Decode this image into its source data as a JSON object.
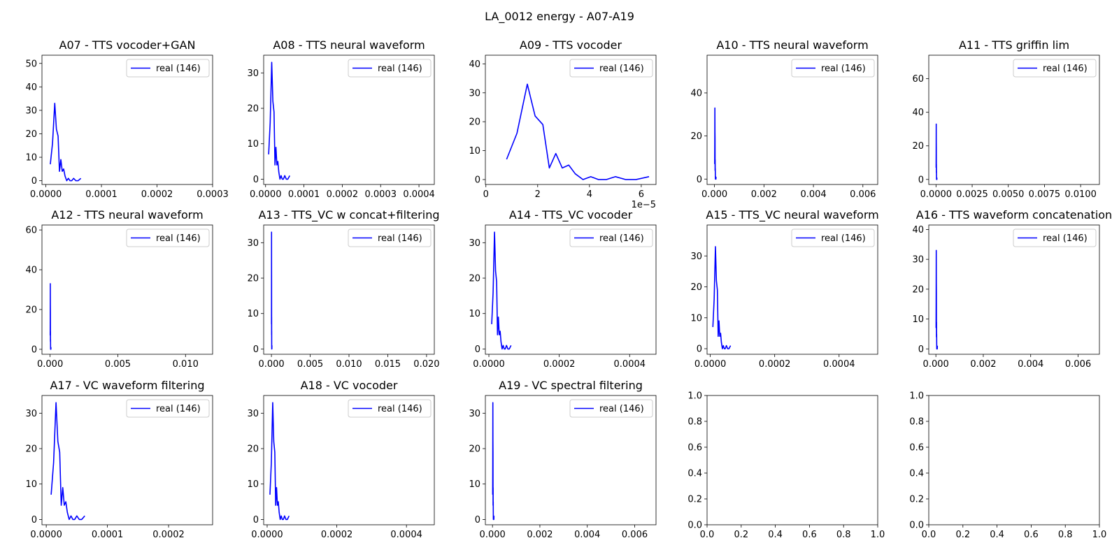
{
  "figure": {
    "title": "LA_0012 energy - A07-A19"
  },
  "colors": {
    "series": "#0000ff",
    "axes": "#000000",
    "legend_border": "#cccccc"
  },
  "base_series": {
    "name": "real (146)",
    "x": [
      8e-06,
      1.2e-05,
      1.6e-05,
      1.9e-05,
      2.2e-05,
      2.45e-05,
      2.7e-05,
      2.95e-05,
      3.2e-05,
      3.45e-05,
      3.75e-05,
      4.05e-05,
      4.35e-05,
      4.65e-05,
      5e-05,
      5.4e-05,
      5.8e-05,
      6.3e-05
    ],
    "y": [
      7,
      16,
      33,
      22,
      19,
      4,
      9,
      4,
      5,
      2,
      0,
      1,
      0,
      0,
      1,
      0,
      0,
      1
    ]
  },
  "chart_data": [
    {
      "type": "line",
      "title": "A07 - TTS vocoder+GAN",
      "xlim": [
        -7e-06,
        0.0003
      ],
      "ylim": [
        -1.6,
        53.5
      ],
      "xticks": [
        0,
        0.0001,
        0.0002,
        0.0003
      ],
      "xtick_labels": [
        "0.0000",
        "0.0001",
        "0.0002",
        "0.0003"
      ],
      "yticks": [
        0,
        10,
        20,
        30,
        40,
        50
      ],
      "ytick_labels": [
        "0",
        "10",
        "20",
        "30",
        "40",
        "50"
      ],
      "offset_label": "",
      "series": [
        {
          "name": "real (146)",
          "color": "#0000ff"
        }
      ],
      "legend": "upper right"
    },
    {
      "type": "line",
      "title": "A08 - TTS neural waveform",
      "xlim": [
        -5e-06,
        0.00044
      ],
      "ylim": [
        -1.5,
        35
      ],
      "xticks": [
        0,
        0.0001,
        0.0002,
        0.0003,
        0.0004
      ],
      "xtick_labels": [
        "0.0000",
        "0.0001",
        "0.0002",
        "0.0003",
        "0.0004"
      ],
      "yticks": [
        0,
        10,
        20,
        30
      ],
      "ytick_labels": [
        "0",
        "10",
        "20",
        "30"
      ],
      "offset_label": "",
      "series": [
        {
          "name": "real (146)",
          "color": "#0000ff"
        }
      ],
      "legend": "upper right"
    },
    {
      "type": "line",
      "title": "A09 - TTS vocoder",
      "xlim": [
        -2e-07,
        6.57e-05
      ],
      "ylim": [
        -1.7,
        43
      ],
      "xticks": [
        0,
        2e-05,
        4e-05,
        6e-05
      ],
      "xtick_labels": [
        "0",
        "2",
        "4",
        "6"
      ],
      "yticks": [
        0,
        10,
        20,
        30,
        40
      ],
      "ytick_labels": [
        "0",
        "10",
        "20",
        "30",
        "40"
      ],
      "offset_label": "1e−5",
      "series": [
        {
          "name": "real (146)",
          "color": "#0000ff"
        }
      ],
      "legend": "upper right"
    },
    {
      "type": "line",
      "title": "A10 - TTS neural waveform",
      "xlim": [
        -0.0003,
        0.0066
      ],
      "ylim": [
        -2.5,
        57.5
      ],
      "xticks": [
        0,
        0.002,
        0.004,
        0.006
      ],
      "xtick_labels": [
        "0.000",
        "0.002",
        "0.004",
        "0.006"
      ],
      "yticks": [
        0,
        20,
        40
      ],
      "ytick_labels": [
        "0",
        "20",
        "40"
      ],
      "offset_label": "",
      "series": [
        {
          "name": "real (146)",
          "color": "#0000ff"
        }
      ],
      "legend": "upper right"
    },
    {
      "type": "line",
      "title": "A11 - TTS griffin lim",
      "xlim": [
        -0.0005,
        0.0113
      ],
      "ylim": [
        -3.0,
        74
      ],
      "xticks": [
        0,
        0.0025,
        0.005,
        0.0075,
        0.01
      ],
      "xtick_labels": [
        "0.0000",
        "0.0025",
        "0.0050",
        "0.0075",
        "0.0100"
      ],
      "yticks": [
        0,
        20,
        40,
        60
      ],
      "ytick_labels": [
        "0",
        "20",
        "40",
        "60"
      ],
      "offset_label": "",
      "series": [
        {
          "name": "real (146)",
          "color": "#0000ff"
        }
      ],
      "legend": "upper right"
    },
    {
      "type": "line",
      "title": "A12 - TTS neural waveform",
      "xlim": [
        -0.0006,
        0.012
      ],
      "ylim": [
        -2.5,
        62.5
      ],
      "xticks": [
        0,
        0.005,
        0.01
      ],
      "xtick_labels": [
        "0.000",
        "0.005",
        "0.010"
      ],
      "yticks": [
        0,
        20,
        40,
        60
      ],
      "ytick_labels": [
        "0",
        "20",
        "40",
        "60"
      ],
      "offset_label": "",
      "series": [
        {
          "name": "real (146)",
          "color": "#0000ff"
        }
      ],
      "legend": "upper right"
    },
    {
      "type": "line",
      "title": "A13 - TTS_VC w concat+filtering",
      "xlim": [
        -0.001,
        0.021
      ],
      "ylim": [
        -1.5,
        35
      ],
      "xticks": [
        0,
        0.005,
        0.01,
        0.015,
        0.02
      ],
      "xtick_labels": [
        "0.000",
        "0.005",
        "0.010",
        "0.015",
        "0.020"
      ],
      "yticks": [
        0,
        10,
        20,
        30
      ],
      "ytick_labels": [
        "0",
        "10",
        "20",
        "30"
      ],
      "offset_label": "",
      "series": [
        {
          "name": "real (146)",
          "color": "#0000ff"
        }
      ],
      "legend": "upper right"
    },
    {
      "type": "line",
      "title": "A14 - TTS_VC vocoder",
      "xlim": [
        -1e-05,
        0.000475
      ],
      "ylim": [
        -1.5,
        35
      ],
      "xticks": [
        0,
        0.0002,
        0.0004
      ],
      "xtick_labels": [
        "0.0000",
        "0.0002",
        "0.0004"
      ],
      "yticks": [
        0,
        10,
        20,
        30
      ],
      "ytick_labels": [
        "0",
        "10",
        "20",
        "30"
      ],
      "offset_label": "",
      "series": [
        {
          "name": "real (146)",
          "color": "#0000ff"
        }
      ],
      "legend": "upper right"
    },
    {
      "type": "line",
      "title": "A15 - TTS_VC neural waveform",
      "xlim": [
        -1e-05,
        0.00052
      ],
      "ylim": [
        -1.8,
        40
      ],
      "xticks": [
        0,
        0.0002,
        0.0004
      ],
      "xtick_labels": [
        "0.0000",
        "0.0002",
        "0.0004"
      ],
      "yticks": [
        0,
        10,
        20,
        30
      ],
      "ytick_labels": [
        "0",
        "10",
        "20",
        "30"
      ],
      "offset_label": "",
      "series": [
        {
          "name": "real (146)",
          "color": "#0000ff"
        }
      ],
      "legend": "upper right"
    },
    {
      "type": "line",
      "title": "A16 - TTS waveform concatenation",
      "xlim": [
        -0.0003,
        0.0069
      ],
      "ylim": [
        -1.8,
        41.5
      ],
      "xticks": [
        0,
        0.002,
        0.004,
        0.006
      ],
      "xtick_labels": [
        "0.000",
        "0.002",
        "0.004",
        "0.006"
      ],
      "yticks": [
        0,
        10,
        20,
        30,
        40
      ],
      "ytick_labels": [
        "0",
        "10",
        "20",
        "30",
        "40"
      ],
      "offset_label": "",
      "series": [
        {
          "name": "real (146)",
          "color": "#0000ff"
        }
      ],
      "legend": "upper right"
    },
    {
      "type": "line",
      "title": "A17 - VC waveform filtering",
      "xlim": [
        -7e-06,
        0.000272
      ],
      "ylim": [
        -1.5,
        35
      ],
      "xticks": [
        0,
        0.0001,
        0.0002
      ],
      "xtick_labels": [
        "0.0000",
        "0.0001",
        "0.0002"
      ],
      "yticks": [
        0,
        10,
        20,
        30
      ],
      "ytick_labels": [
        "0",
        "10",
        "20",
        "30"
      ],
      "offset_label": "",
      "series": [
        {
          "name": "real (146)",
          "color": "#0000ff"
        }
      ],
      "legend": "upper right"
    },
    {
      "type": "line",
      "title": "A18 - VC vocoder",
      "xlim": [
        -1e-05,
        0.00048
      ],
      "ylim": [
        -1.5,
        35
      ],
      "xticks": [
        0,
        0.0002,
        0.0004
      ],
      "xtick_labels": [
        "0.0000",
        "0.0002",
        "0.0004"
      ],
      "yticks": [
        0,
        10,
        20,
        30
      ],
      "ytick_labels": [
        "0",
        "10",
        "20",
        "30"
      ],
      "offset_label": "",
      "series": [
        {
          "name": "real (146)",
          "color": "#0000ff"
        }
      ],
      "legend": "upper right"
    },
    {
      "type": "line",
      "title": "A19 - VC spectral filtering",
      "xlim": [
        -0.0003,
        0.0069
      ],
      "ylim": [
        -1.5,
        35
      ],
      "xticks": [
        0,
        0.002,
        0.004,
        0.006
      ],
      "xtick_labels": [
        "0.000",
        "0.002",
        "0.004",
        "0.006"
      ],
      "yticks": [
        0,
        10,
        20,
        30
      ],
      "ytick_labels": [
        "0",
        "10",
        "20",
        "30"
      ],
      "offset_label": "",
      "series": [
        {
          "name": "real (146)",
          "color": "#0000ff"
        }
      ],
      "legend": "upper right"
    },
    {
      "type": "line",
      "title": "",
      "xlim": [
        0,
        1
      ],
      "ylim": [
        0,
        1
      ],
      "xticks": [
        0,
        0.2,
        0.4,
        0.6,
        0.8,
        1.0
      ],
      "xtick_labels": [
        "0.0",
        "0.2",
        "0.4",
        "0.6",
        "0.8",
        "1.0"
      ],
      "yticks": [
        0,
        0.2,
        0.4,
        0.6,
        0.8,
        1.0
      ],
      "ytick_labels": [
        "0.0",
        "0.2",
        "0.4",
        "0.6",
        "0.8",
        "1.0"
      ],
      "offset_label": "",
      "series": [],
      "legend": "none"
    },
    {
      "type": "line",
      "title": "",
      "xlim": [
        0,
        1
      ],
      "ylim": [
        0,
        1
      ],
      "xticks": [
        0,
        0.2,
        0.4,
        0.6,
        0.8,
        1.0
      ],
      "xtick_labels": [
        "0.0",
        "0.2",
        "0.4",
        "0.6",
        "0.8",
        "1.0"
      ],
      "yticks": [
        0,
        0.2,
        0.4,
        0.6,
        0.8,
        1.0
      ],
      "ytick_labels": [
        "0.0",
        "0.2",
        "0.4",
        "0.6",
        "0.8",
        "1.0"
      ],
      "offset_label": "",
      "series": [],
      "legend": "none"
    }
  ]
}
